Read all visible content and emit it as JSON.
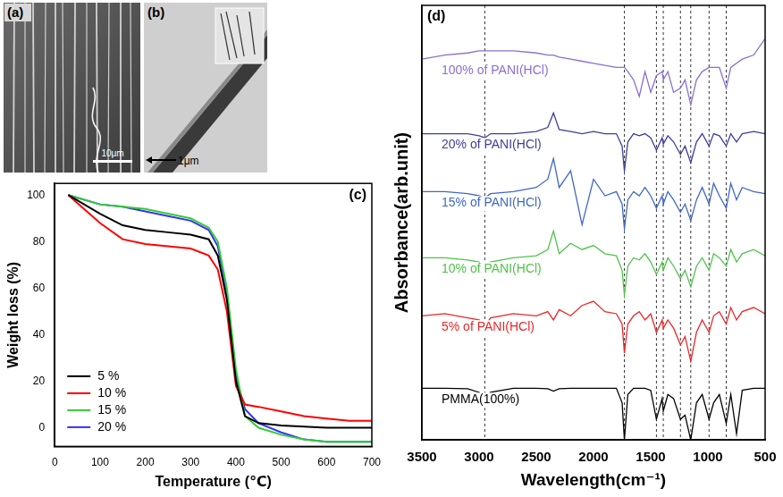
{
  "images": [
    {
      "label": "(a)",
      "scale_bar": "10μm"
    },
    {
      "label": "(b)",
      "scale_bar": "1μm"
    }
  ],
  "chart_data": [
    {
      "type": "line",
      "title": "(c)",
      "x_label": "Temperature (℃)",
      "y_label": "Weight loss (%)",
      "x": [
        30,
        100,
        150,
        200,
        250,
        300,
        340,
        360,
        380,
        400,
        420,
        450,
        500,
        550,
        600,
        650,
        700
      ],
      "series": [
        {
          "name": "5 %",
          "color": "#000000",
          "values": [
            100,
            92,
            87,
            85,
            84,
            83,
            81,
            74,
            55,
            20,
            5,
            2,
            1,
            0.5,
            0,
            0,
            0
          ]
        },
        {
          "name": "10 %",
          "color": "#ff0000",
          "values": [
            100,
            88,
            81,
            79,
            78,
            77,
            74,
            68,
            50,
            18,
            10,
            9,
            7,
            5,
            4,
            3,
            3
          ]
        },
        {
          "name": "15 %",
          "color": "#33cc33",
          "values": [
            100,
            96,
            95,
            94,
            92,
            90,
            86,
            80,
            60,
            25,
            5,
            0,
            -3,
            -5,
            -6,
            -6,
            -6
          ]
        },
        {
          "name": "20 %",
          "color": "#3333ff",
          "values": [
            100,
            96,
            95,
            93,
            91,
            89,
            85,
            78,
            58,
            22,
            8,
            2,
            -2,
            -5,
            -6,
            -6,
            -6
          ]
        }
      ],
      "xlim": [
        0,
        700
      ],
      "xticks": [
        0,
        100,
        200,
        300,
        400,
        500,
        600,
        700
      ],
      "ylim": [
        -8,
        105
      ],
      "yticks": [
        0,
        20,
        40,
        60,
        80,
        100
      ],
      "grid": false,
      "legend": "lower left"
    },
    {
      "type": "line",
      "title": "(d)",
      "x_label": "Wavelength(cm⁻¹)",
      "y_label": "Absorbance(arb.unit)",
      "x": [
        3500,
        3300,
        3100,
        3000,
        2950,
        2900,
        2700,
        2500,
        2400,
        2350,
        2300,
        2200,
        2100,
        2000,
        1900,
        1800,
        1750,
        1730,
        1700,
        1650,
        1600,
        1550,
        1500,
        1450,
        1400,
        1390,
        1350,
        1300,
        1240,
        1200,
        1150,
        1100,
        1050,
        990,
        950,
        900,
        840,
        800,
        750,
        700,
        600,
        500
      ],
      "series": [
        {
          "name": "PMMA(100%)",
          "color": "#000000",
          "values": [
            1.25,
            1.25,
            1.24,
            1.15,
            0.95,
            1.15,
            1.25,
            1.25,
            1.24,
            1.18,
            1.24,
            1.25,
            1.25,
            1.25,
            1.25,
            1.25,
            0.9,
            0.0,
            1.1,
            1.25,
            1.25,
            1.25,
            1.2,
            0.5,
            1.0,
            0.7,
            1.1,
            1.0,
            0.5,
            0.6,
            0.0,
            0.9,
            1.1,
            0.5,
            0.9,
            1.1,
            0.4,
            1.1,
            0.15,
            1.2,
            1.25,
            1.25
          ]
        },
        {
          "name": "5% of PANI(HCl)",
          "color": "#e8282a",
          "values": [
            3.0,
            3.05,
            2.95,
            2.9,
            2.75,
            2.95,
            3.05,
            3.0,
            3.1,
            2.9,
            3.15,
            3.0,
            3.25,
            3.35,
            3.1,
            3.05,
            2.8,
            2.1,
            2.8,
            3.0,
            3.1,
            2.9,
            3.05,
            2.6,
            2.9,
            2.7,
            2.9,
            2.7,
            2.3,
            2.5,
            1.9,
            2.6,
            2.9,
            2.6,
            3.0,
            3.1,
            2.8,
            3.2,
            2.9,
            3.1,
            3.2,
            3.05
          ]
        },
        {
          "name": "10% of PANI(HCl)",
          "color": "#4fc34a",
          "values": [
            4.4,
            4.4,
            4.35,
            4.3,
            4.05,
            4.3,
            4.4,
            4.45,
            4.6,
            5.05,
            4.5,
            4.75,
            4.6,
            4.7,
            4.5,
            4.45,
            4.1,
            3.5,
            4.2,
            4.4,
            4.35,
            4.5,
            4.3,
            4.0,
            4.3,
            4.1,
            4.4,
            4.2,
            3.9,
            4.1,
            3.7,
            4.2,
            4.4,
            4.1,
            4.5,
            4.4,
            4.2,
            4.6,
            4.3,
            4.5,
            4.6,
            4.45
          ]
        },
        {
          "name": "15% of PANI(HCl)",
          "color": "#3f67c8",
          "values": [
            6.0,
            6.0,
            5.95,
            5.9,
            5.85,
            5.95,
            6.0,
            6.1,
            6.3,
            6.8,
            6.1,
            6.5,
            5.2,
            6.3,
            5.9,
            6.0,
            5.7,
            5.1,
            5.8,
            6.0,
            5.9,
            6.1,
            5.9,
            5.6,
            5.9,
            5.7,
            6.0,
            5.8,
            5.5,
            5.7,
            5.3,
            5.8,
            6.1,
            5.7,
            6.2,
            5.9,
            5.6,
            6.2,
            5.8,
            6.1,
            6.0,
            5.95
          ]
        },
        {
          "name": "20% of PANI(HCl)",
          "color": "#3b3f9e",
          "values": [
            7.4,
            7.4,
            7.4,
            7.35,
            7.3,
            7.4,
            7.4,
            7.45,
            7.55,
            7.9,
            7.5,
            7.45,
            7.4,
            7.45,
            7.4,
            7.4,
            7.1,
            6.5,
            7.2,
            7.4,
            7.35,
            7.4,
            7.3,
            7.0,
            7.3,
            7.15,
            7.35,
            7.2,
            6.9,
            7.1,
            6.7,
            7.2,
            7.4,
            7.1,
            7.4,
            7.35,
            7.1,
            7.4,
            7.2,
            7.4,
            7.45,
            7.4
          ]
        },
        {
          "name": "100% of PANI(HCl)",
          "color": "#8a6fd0",
          "values": [
            9.2,
            9.3,
            9.35,
            9.4,
            9.4,
            9.4,
            9.4,
            9.35,
            9.3,
            9.3,
            9.25,
            9.2,
            9.15,
            9.1,
            9.05,
            9.0,
            9.0,
            9.0,
            8.9,
            8.7,
            8.3,
            8.9,
            8.4,
            8.8,
            8.9,
            8.7,
            8.9,
            8.4,
            8.5,
            8.7,
            8.1,
            8.7,
            8.9,
            9.0,
            9.0,
            9.0,
            8.5,
            9.0,
            9.1,
            9.2,
            9.3,
            9.7
          ]
        }
      ],
      "xlim": [
        3500,
        500
      ],
      "xticks": [
        3500,
        3000,
        2500,
        2000,
        1500,
        1000,
        500
      ],
      "ylim": [
        0,
        10.5
      ],
      "grid": false,
      "tick_labels": "x",
      "reference_lines": [
        2950,
        1730,
        1450,
        1390,
        1240,
        1150,
        990,
        840
      ]
    }
  ]
}
